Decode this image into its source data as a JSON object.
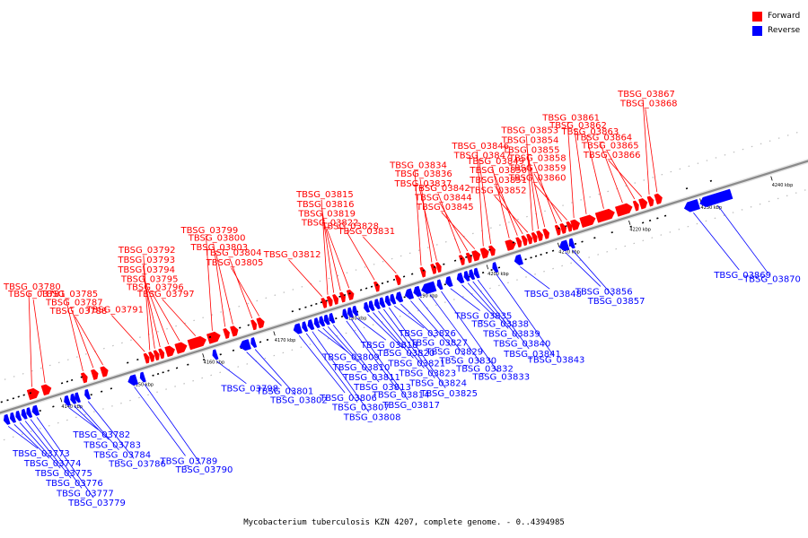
{
  "caption": "Mycobacterium tuberculosis KZN 4207, complete genome. - 0..4394985",
  "legend": [
    {
      "label": "Forward",
      "color": "#ff0000"
    },
    {
      "label": "Reverse",
      "color": "#0000ff"
    }
  ],
  "colors": {
    "forward": "#ff0000",
    "reverse": "#0000ff",
    "axis": "#999999"
  },
  "view_range_kbp": [
    4131,
    4246
  ],
  "ticks_kbp": [
    4140,
    4150,
    4160,
    4170,
    4180,
    4190,
    4200,
    4210,
    4220,
    4230,
    4240
  ],
  "tick_labels": [
    "4140 kbp",
    "4150 kbp",
    "4160 kbp",
    "4170 kbp",
    "4180 kbp",
    "4190 kbp",
    "4200 kbp",
    "4210 kbp",
    "4220 kbp",
    "4230 kbp",
    "4240 kbp"
  ],
  "forward_genes": [
    {
      "name": "TBSG_03780",
      "kbp": [
        4136.0,
        4137.5
      ]
    },
    {
      "name": "TBSG_03781",
      "kbp": [
        4138.0,
        4139.2
      ]
    },
    {
      "name": "TBSG_03785",
      "kbp": [
        4143.6,
        4144.3
      ]
    },
    {
      "name": "TBSG_03787",
      "kbp": [
        4145.0,
        4145.8
      ]
    },
    {
      "name": "TBSG_03788",
      "kbp": [
        4146.3,
        4147.2
      ]
    },
    {
      "name": "TBSG_03791",
      "kbp": [
        4152.4,
        4152.9
      ]
    },
    {
      "name": "TBSG_03792",
      "kbp": [
        4153.1,
        4153.6
      ]
    },
    {
      "name": "TBSG_03793",
      "kbp": [
        4153.8,
        4154.3
      ]
    },
    {
      "name": "TBSG_03794",
      "kbp": [
        4154.5,
        4155.1
      ]
    },
    {
      "name": "TBSG_03795",
      "kbp": [
        4155.4,
        4156.6
      ]
    },
    {
      "name": "TBSG_03796",
      "kbp": [
        4156.8,
        4158.3
      ]
    },
    {
      "name": "TBSG_03797",
      "kbp": [
        4158.6,
        4161.0
      ]
    },
    {
      "name": "TBSG_03799",
      "kbp": [
        4161.3,
        4163.0
      ]
    },
    {
      "name": "TBSG_03800",
      "kbp": [
        4163.6,
        4164.3
      ]
    },
    {
      "name": "TBSG_03803",
      "kbp": [
        4164.6,
        4165.5
      ]
    },
    {
      "name": "TBSG_03804",
      "kbp": [
        4167.5,
        4168.0
      ]
    },
    {
      "name": "TBSG_03805",
      "kbp": [
        4168.3,
        4169.2
      ]
    },
    {
      "name": "TBSG_03812",
      "kbp": [
        4177.4,
        4177.8
      ]
    },
    {
      "name": "TBSG_03815",
      "kbp": [
        4178.2,
        4178.6
      ]
    },
    {
      "name": "TBSG_03816",
      "kbp": [
        4179.0,
        4179.5
      ]
    },
    {
      "name": "TBSG_03819",
      "kbp": [
        4180.0,
        4180.4
      ]
    },
    {
      "name": "TBSG_03822",
      "kbp": [
        4181.0,
        4181.8
      ]
    },
    {
      "name": "TBSG_03828",
      "kbp": [
        4184.8,
        4185.2
      ]
    },
    {
      "name": "TBSG_03831",
      "kbp": [
        4187.8,
        4188.3
      ]
    },
    {
      "name": "TBSG_03834",
      "kbp": [
        4191.3,
        4191.8
      ]
    },
    {
      "name": "TBSG_03836",
      "kbp": [
        4192.8,
        4193.3
      ]
    },
    {
      "name": "TBSG_03837",
      "kbp": [
        4193.5,
        4194.0
      ]
    },
    {
      "name": "TBSG_03842",
      "kbp": [
        4196.8,
        4197.4
      ]
    },
    {
      "name": "TBSG_03844",
      "kbp": [
        4197.8,
        4198.4
      ]
    },
    {
      "name": "TBSG_03845",
      "kbp": [
        4198.6,
        4199.6
      ]
    },
    {
      "name": "TBSG_03846",
      "kbp": [
        4199.8,
        4200.8
      ]
    },
    {
      "name": "TBSG_03847",
      "kbp": [
        4201.0,
        4201.7
      ]
    },
    {
      "name": "TBSG_03849",
      "kbp": [
        4203.3,
        4204.6
      ]
    },
    {
      "name": "TBSG_03850",
      "kbp": [
        4204.8,
        4205.4
      ]
    },
    {
      "name": "TBSG_03851",
      "kbp": [
        4205.6,
        4206.1
      ]
    },
    {
      "name": "TBSG_03852",
      "kbp": [
        4206.3,
        4206.8
      ]
    },
    {
      "name": "TBSG_03853",
      "kbp": [
        4207.0,
        4207.5
      ]
    },
    {
      "name": "TBSG_03854",
      "kbp": [
        4207.7,
        4208.4
      ]
    },
    {
      "name": "TBSG_03855",
      "kbp": [
        4208.6,
        4209.3
      ]
    },
    {
      "name": "TBSG_03858",
      "kbp": [
        4210.3,
        4210.9
      ]
    },
    {
      "name": "TBSG_03859",
      "kbp": [
        4211.0,
        4211.7
      ]
    },
    {
      "name": "TBSG_03860",
      "kbp": [
        4211.9,
        4212.3
      ]
    },
    {
      "name": "TBSG_03861",
      "kbp": [
        4212.5,
        4213.6
      ]
    },
    {
      "name": "TBSG_03862",
      "kbp": [
        4213.8,
        4215.8
      ]
    },
    {
      "name": "TBSG_03863",
      "kbp": [
        4216.0,
        4218.5
      ]
    },
    {
      "name": "TBSG_03864",
      "kbp": [
        4218.8,
        4221.0
      ]
    },
    {
      "name": "TBSG_03865",
      "kbp": [
        4221.3,
        4221.9
      ]
    },
    {
      "name": "TBSG_03866",
      "kbp": [
        4222.1,
        4223.1
      ]
    },
    {
      "name": "TBSG_03867",
      "kbp": [
        4223.3,
        4224.0
      ]
    },
    {
      "name": "TBSG_03868",
      "kbp": [
        4224.3,
        4225.2
      ]
    }
  ],
  "reverse_genes": [
    {
      "name": "TBSG_03773",
      "kbp": [
        4131.8,
        4132.5
      ]
    },
    {
      "name": "TBSG_03774",
      "kbp": [
        4132.7,
        4133.3
      ]
    },
    {
      "name": "TBSG_03775",
      "kbp": [
        4133.5,
        4134.1
      ]
    },
    {
      "name": "TBSG_03776",
      "kbp": [
        4134.3,
        4134.8
      ]
    },
    {
      "name": "TBSG_03777",
      "kbp": [
        4135.0,
        4135.6
      ]
    },
    {
      "name": "TBSG_03779",
      "kbp": [
        4135.8,
        4136.6
      ]
    },
    {
      "name": "TBSG_03782",
      "kbp": [
        4140.3,
        4141.0
      ]
    },
    {
      "name": "TBSG_03783",
      "kbp": [
        4141.2,
        4141.6
      ]
    },
    {
      "name": "TBSG_03784",
      "kbp": [
        4141.8,
        4142.3
      ]
    },
    {
      "name": "TBSG_03786",
      "kbp": [
        4143.2,
        4143.6
      ]
    },
    {
      "name": "TBSG_03789",
      "kbp": [
        4149.3,
        4150.5
      ]
    },
    {
      "name": "TBSG_03790",
      "kbp": [
        4151.0,
        4151.6
      ]
    },
    {
      "name": "TBSG_03798",
      "kbp": [
        4161.2,
        4161.8
      ]
    },
    {
      "name": "TBSG_03801",
      "kbp": [
        4165.0,
        4166.4
      ]
    },
    {
      "name": "TBSG_03802",
      "kbp": [
        4166.6,
        4167.2
      ]
    },
    {
      "name": "TBSG_03806",
      "kbp": [
        4172.6,
        4173.6
      ]
    },
    {
      "name": "TBSG_03807",
      "kbp": [
        4173.8,
        4174.4
      ]
    },
    {
      "name": "TBSG_03808",
      "kbp": [
        4174.6,
        4175.3
      ]
    },
    {
      "name": "TBSG_03809",
      "kbp": [
        4175.5,
        4176.0
      ]
    },
    {
      "name": "TBSG_03810",
      "kbp": [
        4176.2,
        4176.7
      ]
    },
    {
      "name": "TBSG_03811",
      "kbp": [
        4176.9,
        4177.4
      ]
    },
    {
      "name": "TBSG_03813",
      "kbp": [
        4177.6,
        4178.2
      ]
    },
    {
      "name": "TBSG_03814",
      "kbp": [
        4179.5,
        4180.0
      ]
    },
    {
      "name": "TBSG_03817",
      "kbp": [
        4180.2,
        4180.7
      ]
    },
    {
      "name": "TBSG_03818",
      "kbp": [
        4180.9,
        4181.4
      ]
    },
    {
      "name": "TBSG_03820",
      "kbp": [
        4182.5,
        4183.0
      ]
    },
    {
      "name": "TBSG_03821",
      "kbp": [
        4183.2,
        4183.8
      ]
    },
    {
      "name": "TBSG_03823",
      "kbp": [
        4184.0,
        4184.5
      ]
    },
    {
      "name": "TBSG_03824",
      "kbp": [
        4184.7,
        4185.3
      ]
    },
    {
      "name": "TBSG_03825",
      "kbp": [
        4185.5,
        4186.0
      ]
    },
    {
      "name": "TBSG_03826",
      "kbp": [
        4186.2,
        4186.8
      ]
    },
    {
      "name": "TBSG_03827",
      "kbp": [
        4187.0,
        4187.8
      ]
    },
    {
      "name": "TBSG_03829",
      "kbp": [
        4188.3,
        4189.3
      ]
    },
    {
      "name": "TBSG_03830",
      "kbp": [
        4189.5,
        4190.4
      ]
    },
    {
      "name": "TBSG_03832",
      "kbp": [
        4190.6,
        4192.5
      ]
    },
    {
      "name": "TBSG_03833",
      "kbp": [
        4192.8,
        4193.4
      ]
    },
    {
      "name": "TBSG_03835",
      "kbp": [
        4194.0,
        4194.8
      ]
    },
    {
      "name": "TBSG_03838",
      "kbp": [
        4195.6,
        4196.4
      ]
    },
    {
      "name": "TBSG_03839",
      "kbp": [
        4196.6,
        4197.1
      ]
    },
    {
      "name": "TBSG_03840",
      "kbp": [
        4197.3,
        4197.8
      ]
    },
    {
      "name": "TBSG_03841",
      "kbp": [
        4198.0,
        4198.5
      ]
    },
    {
      "name": "TBSG_03843",
      "kbp": [
        4200.6,
        4201.1
      ]
    },
    {
      "name": "TBSG_03848",
      "kbp": [
        4203.7,
        4204.7
      ]
    },
    {
      "name": "TBSG_03856",
      "kbp": [
        4210.0,
        4211.2
      ]
    },
    {
      "name": "TBSG_03857",
      "kbp": [
        4211.4,
        4211.8
      ]
    },
    {
      "name": "TBSG_03869",
      "kbp": [
        4227.6,
        4229.6
      ]
    },
    {
      "name": "TBSG_03870",
      "kbp": [
        4229.8,
        4234.2
      ]
    }
  ]
}
